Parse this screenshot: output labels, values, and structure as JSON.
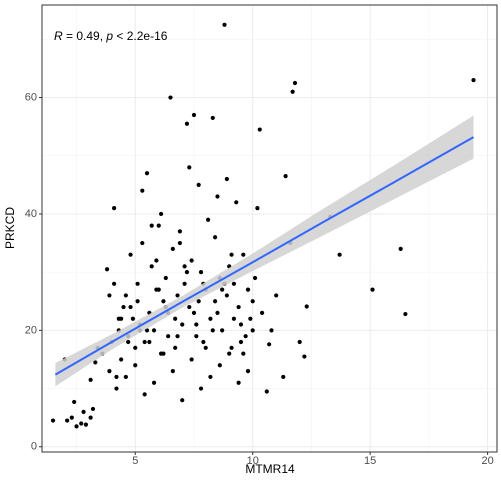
{
  "chart_data": {
    "type": "scatter",
    "annotation": [
      "R",
      " = 0.49, ",
      "p",
      " < 2.2e-16"
    ],
    "x_label": "MTMR14",
    "y_label": "PRKCD",
    "xlim": [
      1.03,
      20.4
    ],
    "ylim": [
      -0.9,
      75.9
    ],
    "xticks": [
      5,
      10,
      15,
      20
    ],
    "yticks": [
      0,
      20,
      40,
      60
    ],
    "grid": true,
    "series": [
      {
        "color": "#000000",
        "x": [
          8.8,
          11.8,
          11.7,
          19.4,
          6.5,
          10.3,
          7.5,
          8.3,
          7.2,
          11.4,
          16.3,
          16.5,
          15.1,
          13.3,
          13.7,
          12.3,
          12.2,
          10.6,
          10.7,
          11.3,
          1.5,
          2.1,
          2.3,
          2.5,
          2.7,
          2.9,
          2.8,
          3.1,
          3.2,
          2.4,
          2.0,
          3.1,
          3.3,
          3.4,
          3.6,
          3.8,
          3.9,
          4.0,
          4.1,
          4.2,
          4.3,
          4.4,
          4.5,
          4.6,
          4.7,
          4.8,
          4.9,
          5.0,
          5.1,
          5.2,
          5.3,
          5.4,
          5.5,
          5.6,
          5.7,
          5.8,
          5.9,
          6.0,
          6.1,
          6.2,
          6.3,
          6.4,
          6.6,
          6.7,
          6.8,
          6.9,
          7.0,
          7.1,
          7.3,
          7.4,
          7.6,
          7.7,
          7.8,
          7.9,
          8.0,
          8.1,
          8.2,
          8.4,
          8.5,
          8.6,
          8.7,
          8.9,
          9.0,
          9.1,
          9.2,
          9.3,
          9.4,
          9.5,
          9.6,
          9.7,
          9.8,
          9.9,
          10.0,
          10.1,
          10.4,
          10.8,
          11.0,
          11.6,
          12.0,
          4.2,
          4.6,
          5.0,
          5.4,
          5.8,
          6.2,
          6.6,
          7.0,
          7.4,
          7.8,
          8.2,
          8.6,
          9.0,
          9.4,
          9.8,
          4.4,
          4.8,
          5.2,
          5.6,
          6.0,
          6.4,
          6.8,
          7.2,
          7.6,
          8.0,
          8.4,
          8.8,
          9.2,
          9.6,
          10.0,
          3.9,
          4.3,
          4.7,
          5.1,
          5.5,
          5.9,
          6.3,
          6.7,
          7.1,
          7.5,
          7.9,
          8.3,
          8.7,
          9.1,
          9.5,
          5.3,
          6.1,
          6.9,
          7.7,
          8.5,
          4.1,
          5.7,
          7.3,
          8.9,
          10.2
        ],
        "values": [
          72.5,
          62.5,
          61,
          63,
          60,
          54.5,
          57,
          56.5,
          55.5,
          46.5,
          34,
          22.8,
          27,
          39.5,
          33,
          24.1,
          15.5,
          9.5,
          17.6,
          12,
          4.5,
          4.5,
          5,
          3.5,
          4,
          3.8,
          6,
          5,
          6.5,
          7.7,
          15,
          11.5,
          14.5,
          17,
          16,
          30.5,
          13,
          18,
          41,
          12,
          20,
          15,
          24,
          26,
          19,
          33,
          22,
          17,
          28,
          21,
          35,
          18,
          47,
          23,
          31,
          20,
          27,
          38,
          16,
          25,
          29,
          19,
          34,
          22,
          26,
          37,
          21,
          28,
          24,
          32,
          19,
          25,
          30,
          18,
          27,
          39,
          22,
          36,
          23,
          29,
          20,
          26,
          31,
          17,
          28,
          42,
          24,
          21,
          33,
          19,
          27,
          22,
          25,
          29,
          23,
          20,
          26,
          35,
          18,
          10,
          12,
          14,
          9,
          11,
          16,
          13,
          8,
          15,
          10,
          12,
          14,
          16,
          11,
          13,
          22,
          24,
          20,
          18,
          27,
          23,
          19,
          30,
          21,
          17,
          25,
          28,
          22,
          16,
          20,
          26,
          22,
          18,
          25,
          20,
          32,
          24,
          17,
          31,
          23,
          28,
          20,
          27,
          33,
          18,
          44,
          40,
          35,
          45,
          43,
          28,
          38,
          48,
          46,
          41
        ]
      }
    ],
    "fit": {
      "color": "#3366ff",
      "band_color": "#d0d0d0",
      "x": [
        1.6,
        4,
        7,
        10,
        13,
        16,
        19.4
      ],
      "y": [
        12.4,
        18.0,
        24.9,
        31.7,
        38.6,
        45.4,
        53.2
      ],
      "lower": [
        10.4,
        16.7,
        23.9,
        30.2,
        36.3,
        42.5,
        49.5
      ],
      "upper": [
        14.4,
        19.3,
        25.9,
        33.2,
        40.9,
        48.3,
        56.9
      ]
    }
  }
}
